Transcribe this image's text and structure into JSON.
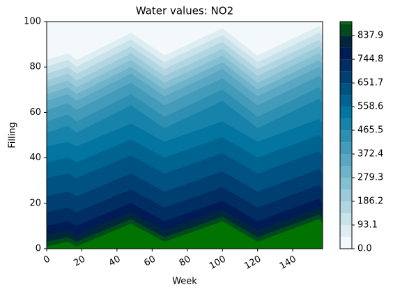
{
  "chart_data": {
    "type": "contourf",
    "title": "Water values: NO2",
    "xlabel": "Week",
    "ylabel": "Filling",
    "x": [
      0,
      12,
      17,
      48,
      67,
      100,
      120,
      155,
      157
    ],
    "xlim": [
      0,
      157
    ],
    "ylim": [
      0,
      100
    ],
    "xticks": [
      0,
      20,
      40,
      60,
      80,
      100,
      120,
      140
    ],
    "yticks": [
      0,
      20,
      40,
      60,
      80,
      100
    ],
    "background": "#f3f8fa",
    "contours": [
      {
        "level": 46.55,
        "color": "#ddedf2",
        "filling": [
          83,
          86,
          83,
          95,
          85,
          97,
          85,
          98,
          96
        ]
      },
      {
        "level": 93.1,
        "color": "#c7e2ea",
        "filling": [
          80,
          83,
          80,
          92,
          82,
          94,
          82,
          95,
          93
        ]
      },
      {
        "level": 139.65,
        "color": "#b1d6e2",
        "filling": [
          77,
          80,
          77,
          89,
          79,
          91,
          79,
          92,
          90
        ]
      },
      {
        "level": 186.2,
        "color": "#9bcbda",
        "filling": [
          74,
          77,
          74,
          86,
          76,
          88,
          76,
          89,
          87
        ]
      },
      {
        "level": 232.75,
        "color": "#85bfd2",
        "filling": [
          71,
          74,
          71,
          83,
          73,
          85,
          73,
          86,
          84
        ]
      },
      {
        "level": 279.3,
        "color": "#6fb3ca",
        "filling": [
          68,
          71,
          68,
          80,
          70,
          82,
          70,
          83,
          81
        ]
      },
      {
        "level": 325.85,
        "color": "#59a7c2",
        "filling": [
          65,
          68,
          65,
          77,
          67,
          79,
          67,
          80,
          78
        ]
      },
      {
        "level": 372.4,
        "color": "#439bba",
        "filling": [
          61,
          64,
          61,
          73,
          63,
          75,
          63,
          76,
          74
        ]
      },
      {
        "level": 418.95,
        "color": "#2d8fb2",
        "filling": [
          56,
          59,
          56,
          68,
          58,
          70,
          58,
          71,
          69
        ]
      },
      {
        "level": 465.5,
        "color": "#1783aa",
        "filling": [
          51,
          54,
          51,
          63,
          53,
          65,
          53,
          66,
          64
        ]
      },
      {
        "level": 512.05,
        "color": "#0275a0",
        "filling": [
          45,
          47,
          45,
          55,
          47,
          56,
          47,
          57,
          55
        ]
      },
      {
        "level": 558.6,
        "color": "#006491",
        "filling": [
          38,
          40,
          38,
          48,
          40,
          49,
          40,
          50,
          48
        ]
      },
      {
        "level": 605.15,
        "color": "#005282",
        "filling": [
          31,
          33,
          31,
          41,
          33,
          42,
          33,
          43,
          41
        ]
      },
      {
        "level": 651.7,
        "color": "#003f72",
        "filling": [
          23,
          25,
          23,
          33,
          25,
          34,
          25,
          35,
          33
        ]
      },
      {
        "level": 698.25,
        "color": "#002d62",
        "filling": [
          16,
          18,
          16,
          26,
          18,
          27,
          18,
          28,
          26
        ]
      },
      {
        "level": 744.8,
        "color": "#001c55",
        "filling": [
          10,
          12,
          10,
          20,
          12,
          21,
          12,
          22,
          20
        ]
      },
      {
        "level": 791.35,
        "color": "#00283a",
        "filling": [
          6,
          8,
          6,
          16,
          8,
          17,
          8,
          18,
          16
        ]
      },
      {
        "level": 837.9,
        "color": "#004a1c",
        "filling": [
          3,
          5,
          3,
          13,
          5,
          14,
          5,
          15,
          13
        ]
      },
      {
        "level": 884.45,
        "color": "#007300",
        "filling": [
          1,
          3,
          1,
          11,
          3,
          12,
          3,
          13,
          11
        ]
      }
    ],
    "colorbar": {
      "lim": [
        0,
        893
      ],
      "ticks": [
        {
          "value": 0,
          "label": "0.0"
        },
        93.1,
        186.2,
        279.3,
        372.4,
        465.5,
        558.6,
        651.7,
        744.8,
        837.9
      ]
    }
  }
}
